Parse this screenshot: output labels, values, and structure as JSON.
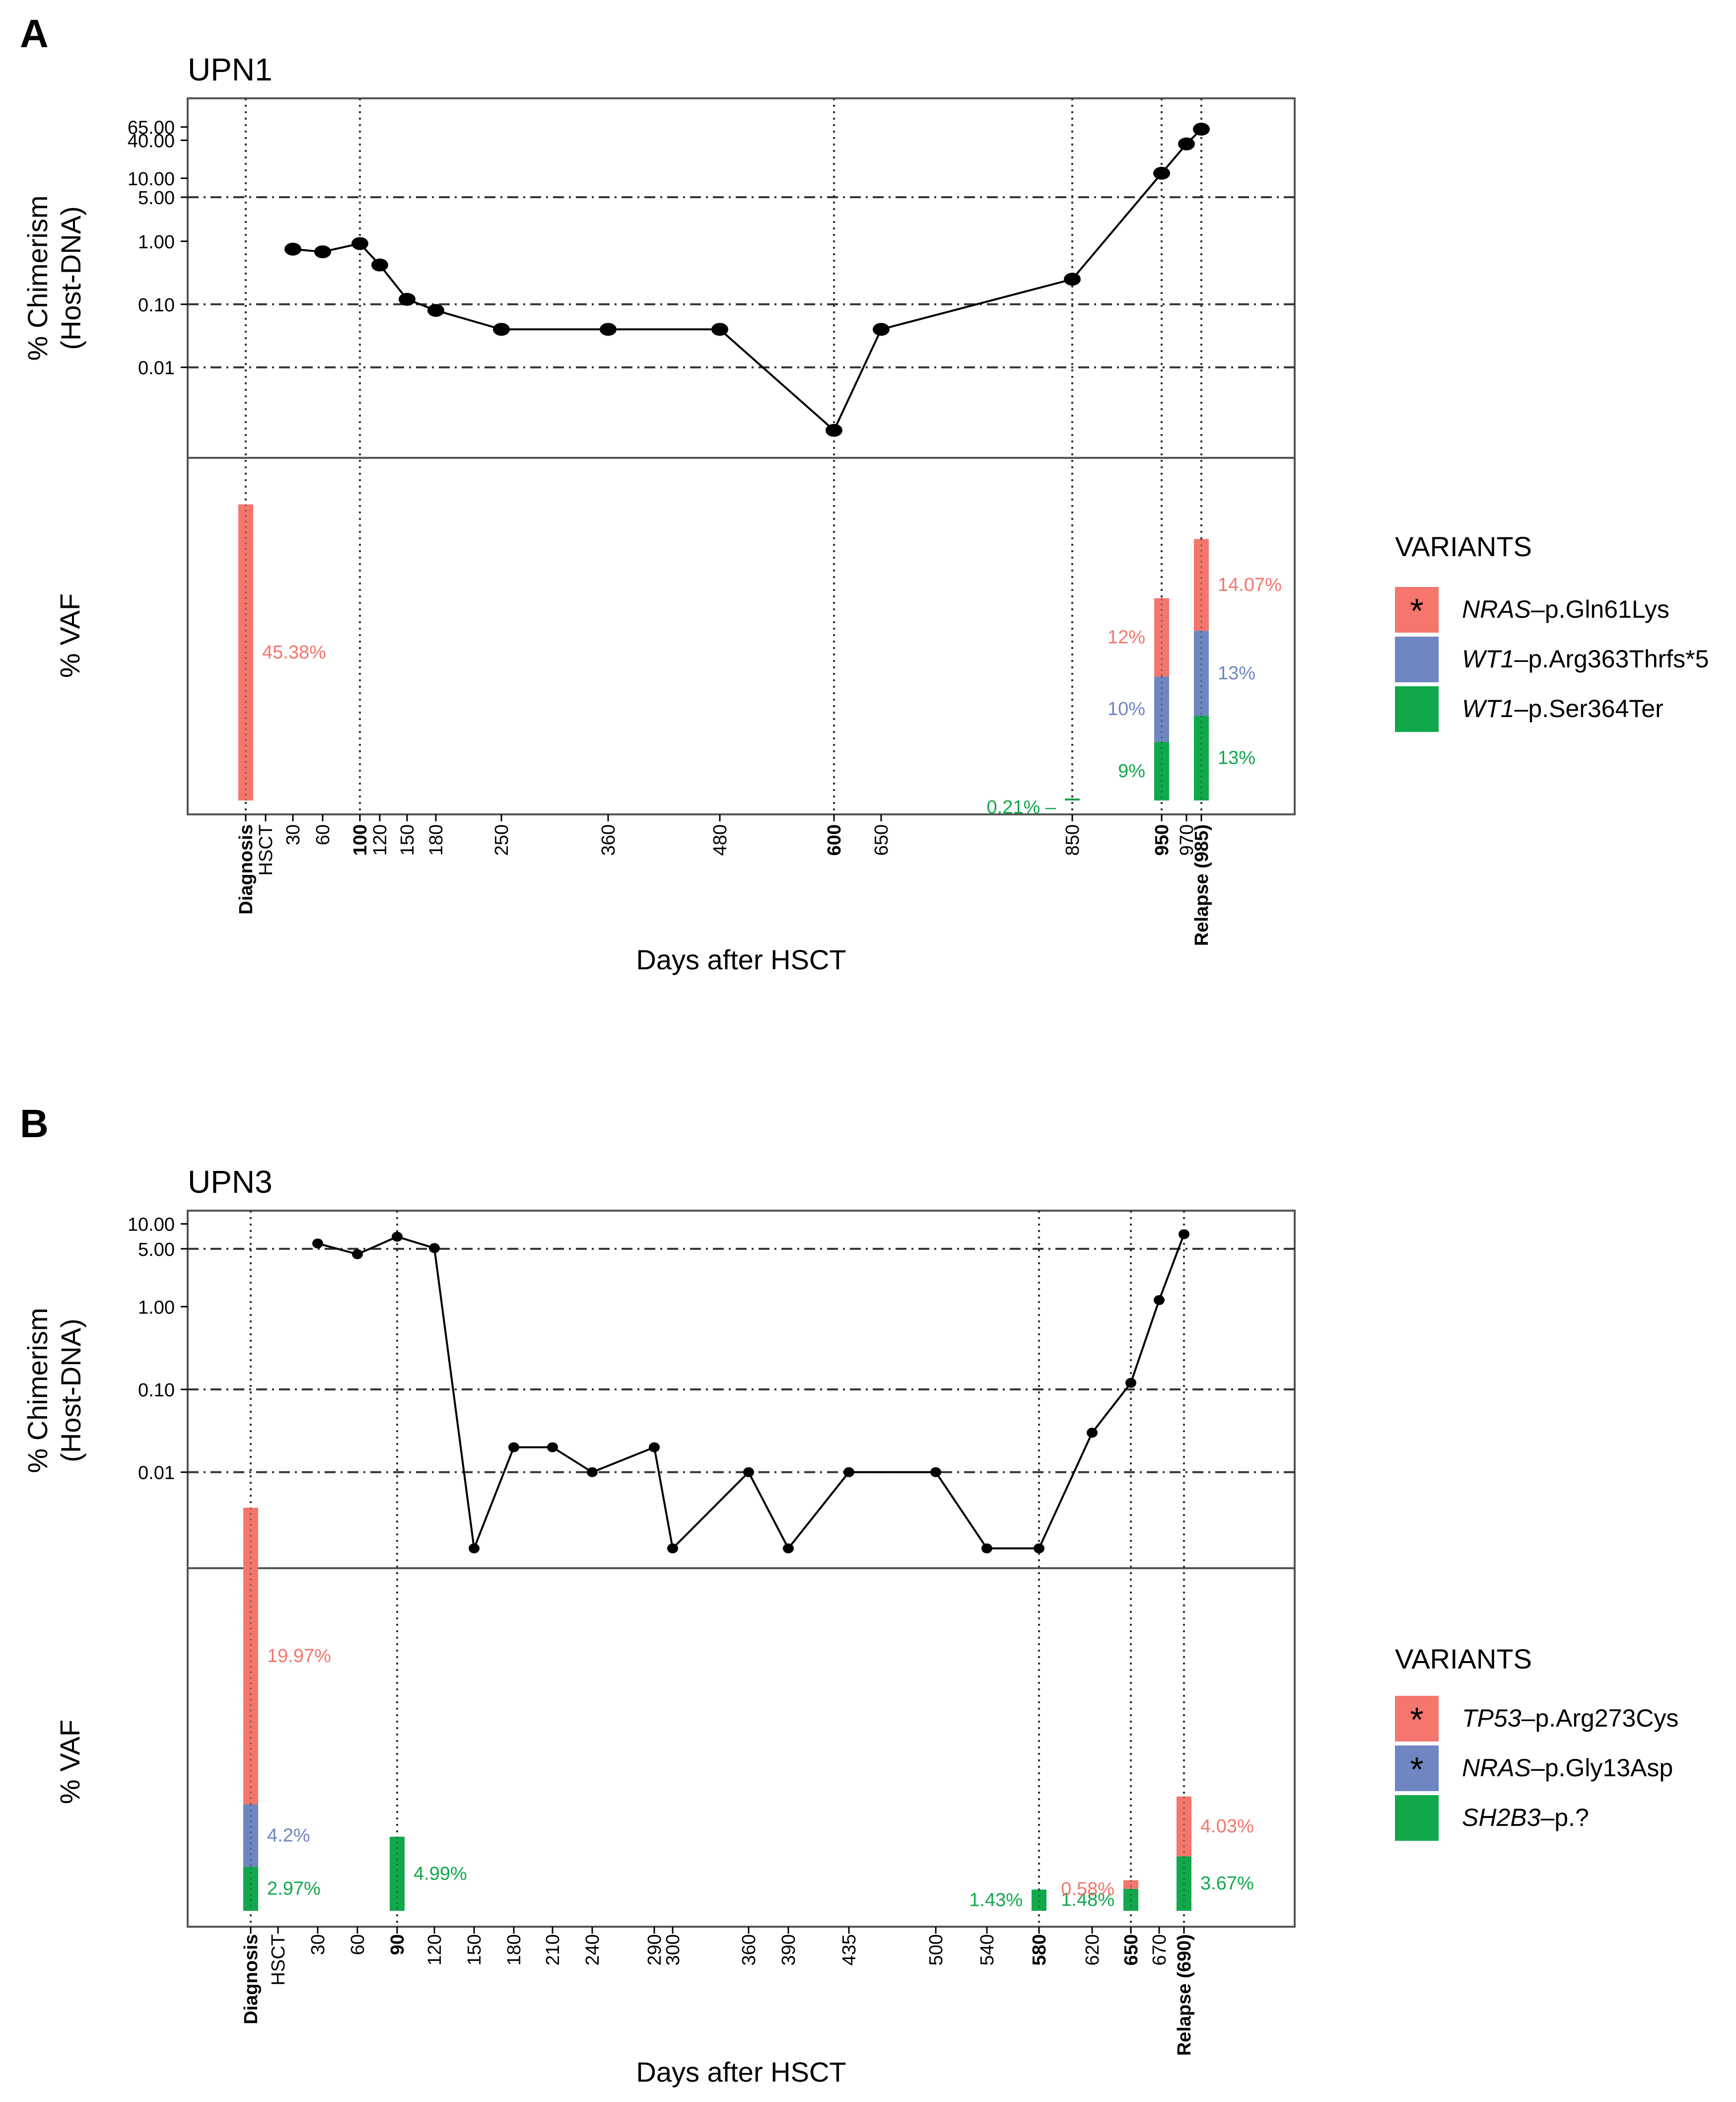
{
  "colors": {
    "red": "#F4766D",
    "blue": "#6F86C2",
    "green": "#11A84C",
    "axis": "#000000",
    "frame": "#555555",
    "guide": "#333333"
  },
  "chart_data": [
    {
      "type": "line",
      "panel_label": "A",
      "title": "UPN1",
      "xlabel": "Days after HSCT",
      "ylabel_chimerism": [
        "% Chimerism",
        "(Host-DNA)"
      ],
      "ylabel_vaf": "% VAF",
      "y_scale": "log",
      "y_ticks": [
        "65.00",
        "40.00",
        "10.00",
        "5.00",
        "1.00",
        "0.10",
        "0.01"
      ],
      "y_tick_values": [
        65,
        40,
        10,
        5,
        1,
        0.1,
        0.01
      ],
      "threshold_lines": [
        5,
        0.1,
        0.01
      ],
      "x_categories": [
        "Diagnosis",
        "HSCT",
        "30",
        "60",
        "100",
        "120",
        "150",
        "180",
        "250",
        "360",
        "480",
        "600",
        "650",
        "850",
        "950",
        "970",
        "Relapse (985)"
      ],
      "x_bold": [
        "Diagnosis",
        "100",
        "600",
        "950",
        "Relapse (985)"
      ],
      "vertical_guides": [
        "Diagnosis",
        "100",
        "600",
        "850",
        "950",
        "Relapse (985)"
      ],
      "chimerism": [
        {
          "x": "30",
          "y": 0.75
        },
        {
          "x": "60",
          "y": 0.68
        },
        {
          "x": "100",
          "y": 0.92
        },
        {
          "x": "120",
          "y": 0.42
        },
        {
          "x": "150",
          "y": 0.12
        },
        {
          "x": "180",
          "y": 0.08
        },
        {
          "x": "250",
          "y": 0.04
        },
        {
          "x": "360",
          "y": 0.04
        },
        {
          "x": "480",
          "y": 0.04
        },
        {
          "x": "600",
          "y": 0.001
        },
        {
          "x": "650",
          "y": 0.04
        },
        {
          "x": "850",
          "y": 0.25
        },
        {
          "x": "950",
          "y": 12
        },
        {
          "x": "970",
          "y": 35
        },
        {
          "x": "Relapse (985)",
          "y": 60
        }
      ],
      "vaf_max": 50,
      "vaf_bars": [
        {
          "x": "Diagnosis",
          "segments": [
            {
              "variant": 0,
              "value": 45.38,
              "label": "45.38%"
            }
          ]
        },
        {
          "x": "850",
          "segments": [
            {
              "variant": 2,
              "value": 0.21,
              "label": "0.21% –"
            }
          ]
        },
        {
          "x": "950",
          "segments": [
            {
              "variant": 2,
              "value": 9,
              "label": "9%"
            },
            {
              "variant": 1,
              "value": 10,
              "label": "10%"
            },
            {
              "variant": 0,
              "value": 12,
              "label": "12%"
            }
          ]
        },
        {
          "x": "Relapse (985)",
          "segments": [
            {
              "variant": 2,
              "value": 13,
              "label": "13%"
            },
            {
              "variant": 1,
              "value": 13,
              "label": "13%"
            },
            {
              "variant": 0,
              "value": 14.07,
              "label": "14.07%"
            }
          ]
        }
      ],
      "legend": {
        "title": "VARIANTS",
        "items": [
          {
            "gene": "NRAS",
            "change": "–p.Gln61Lys",
            "color": "#F4766D",
            "marker": "*"
          },
          {
            "gene": "WT1",
            "change": "–p.Arg363Thrfs*5",
            "color": "#6F86C2",
            "marker": ""
          },
          {
            "gene": "WT1",
            "change": "–p.Ser364Ter",
            "color": "#11A84C",
            "marker": ""
          }
        ]
      }
    },
    {
      "type": "line",
      "panel_label": "B",
      "title": "UPN3",
      "xlabel": "Days after HSCT",
      "ylabel_chimerism": [
        "% Chimerism",
        "(Host-DNA)"
      ],
      "ylabel_vaf": "% VAF",
      "y_scale": "log",
      "y_ticks": [
        "10.00",
        "5.00",
        "1.00",
        "0.10",
        "0.01"
      ],
      "y_tick_values": [
        10,
        5,
        1,
        0.1,
        0.01
      ],
      "threshold_lines": [
        5,
        0.1,
        0.01
      ],
      "x_categories": [
        "Diagnosis",
        "HSCT",
        "30",
        "60",
        "90",
        "120",
        "150",
        "180",
        "210",
        "240",
        "290",
        "300",
        "360",
        "390",
        "435",
        "500",
        "540",
        "580",
        "620",
        "650",
        "670",
        "Relapse (690)"
      ],
      "x_bold": [
        "Diagnosis",
        "90",
        "580",
        "650",
        "Relapse (690)"
      ],
      "vertical_guides": [
        "Diagnosis",
        "90",
        "580",
        "650",
        "Relapse (690)"
      ],
      "chimerism": [
        {
          "x": "30",
          "y": 5.8
        },
        {
          "x": "60",
          "y": 4.3
        },
        {
          "x": "90",
          "y": 7.0
        },
        {
          "x": "120",
          "y": 5.1
        },
        {
          "x": "150",
          "y": 0.0012
        },
        {
          "x": "180",
          "y": 0.02
        },
        {
          "x": "210",
          "y": 0.02
        },
        {
          "x": "240",
          "y": 0.01
        },
        {
          "x": "290",
          "y": 0.02
        },
        {
          "x": "300",
          "y": 0.0012
        },
        {
          "x": "360",
          "y": 0.01
        },
        {
          "x": "390",
          "y": 0.0012
        },
        {
          "x": "435",
          "y": 0.01
        },
        {
          "x": "500",
          "y": 0.01
        },
        {
          "x": "540",
          "y": 0.0012
        },
        {
          "x": "580",
          "y": 0.0012
        },
        {
          "x": "620",
          "y": 0.03
        },
        {
          "x": "650",
          "y": 0.12
        },
        {
          "x": "670",
          "y": 1.2
        },
        {
          "x": "Relapse (690)",
          "y": 7.5
        }
      ],
      "vaf_max": 22,
      "vaf_bars": [
        {
          "x": "Diagnosis",
          "segments": [
            {
              "variant": 2,
              "value": 2.97,
              "label": "2.97%"
            },
            {
              "variant": 1,
              "value": 4.2,
              "label": "4.2%"
            },
            {
              "variant": 0,
              "value": 19.97,
              "label": "19.97%"
            }
          ]
        },
        {
          "x": "90",
          "segments": [
            {
              "variant": 2,
              "value": 4.99,
              "label": "4.99%"
            }
          ]
        },
        {
          "x": "580",
          "segments": [
            {
              "variant": 2,
              "value": 1.43,
              "label": "1.43%",
              "side": "left"
            }
          ]
        },
        {
          "x": "650",
          "segments": [
            {
              "variant": 2,
              "value": 1.48,
              "label": "1.48%",
              "side": "left"
            },
            {
              "variant": 0,
              "value": 0.58,
              "label": "0.58%",
              "side": "left"
            }
          ]
        },
        {
          "x": "Relapse (690)",
          "segments": [
            {
              "variant": 2,
              "value": 3.67,
              "label": "3.67%"
            },
            {
              "variant": 0,
              "value": 4.03,
              "label": "4.03%"
            }
          ]
        }
      ],
      "legend": {
        "title": "VARIANTS",
        "items": [
          {
            "gene": "TP53",
            "change": "–p.Arg273Cys",
            "color": "#F4766D",
            "marker": "*"
          },
          {
            "gene": "NRAS",
            "change": "–p.Gly13Asp",
            "color": "#6F86C2",
            "marker": "*"
          },
          {
            "gene": "SH2B3",
            "change": "–p.?",
            "color": "#11A84C",
            "marker": ""
          }
        ]
      }
    }
  ]
}
